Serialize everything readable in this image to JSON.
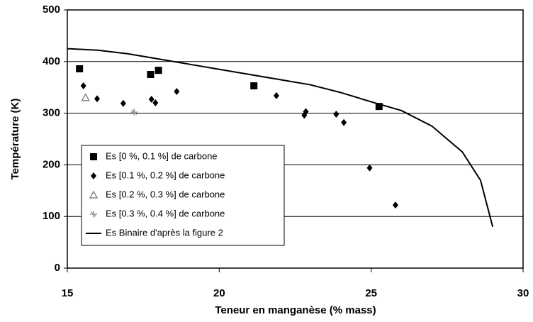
{
  "chart_data": {
    "type": "scatter",
    "x_label": "Teneur en manganèse (% mass)",
    "y_label": "Température (K)",
    "xlim": [
      15,
      30
    ],
    "xticks": [
      15,
      20,
      25,
      30
    ],
    "ylim": [
      0,
      500
    ],
    "yticks": [
      0,
      100,
      200,
      300,
      400,
      500
    ],
    "grid": true,
    "legend": "lower left",
    "series": [
      {
        "name": "Es [0 %, 0.1 %] de carbone",
        "marker": "square",
        "color": "#000000",
        "x": [
          15.4,
          17.74,
          18.0,
          21.14,
          25.26
        ],
        "values": [
          386,
          375,
          383,
          353,
          313
        ]
      },
      {
        "name": "Es [0.1 %, 0.2 %] de carbone",
        "marker": "diamond",
        "color": "#000000",
        "x": [
          15.53,
          15.98,
          16.84,
          17.77,
          17.9,
          18.6,
          21.88,
          22.8,
          22.85,
          23.85,
          24.1,
          24.95,
          25.8
        ],
        "values": [
          353,
          328,
          319,
          327,
          320,
          342,
          334,
          296,
          303,
          298,
          282,
          194,
          122
        ]
      },
      {
        "name": "Es [0.2 %, 0.3 %] de carbone",
        "marker": "triangle",
        "color": "#888888",
        "x": [
          15.6
        ],
        "values": [
          330
        ]
      },
      {
        "name": "Es [0.3 %, 0.4 %] de carbone",
        "marker": "star",
        "color": "#999999",
        "x": [
          17.2
        ],
        "values": [
          302
        ]
      },
      {
        "name": "Es Binaire d'après la figure 2",
        "marker": "line",
        "color": "#000000",
        "x": [
          15,
          16,
          17,
          18,
          19,
          20,
          21,
          22,
          23,
          24,
          25,
          26,
          27,
          28,
          28.6,
          29
        ],
        "values": [
          425,
          422,
          415,
          405,
          395,
          385,
          375,
          365,
          355,
          340,
          322,
          305,
          275,
          225,
          170,
          80
        ]
      }
    ]
  }
}
